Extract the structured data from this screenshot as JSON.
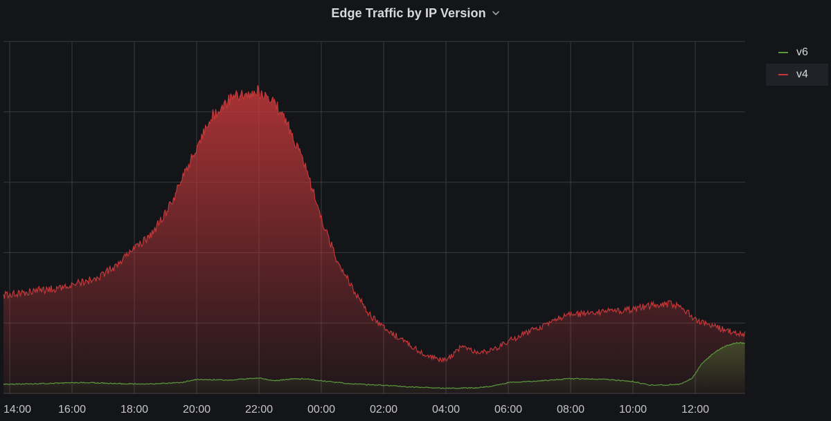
{
  "panel": {
    "title": "Edge Traffic by IP Version",
    "menu_icon": "chevron-down-icon"
  },
  "colors": {
    "background": "#141519",
    "grid": "#3a3b3f",
    "v4": "#c4383a",
    "v6": "#5b9a3c",
    "text": "#d8d9da"
  },
  "legend": {
    "items": [
      {
        "name": "v6",
        "color": "#5b9a3c"
      },
      {
        "name": "v4",
        "color": "#c4383a"
      }
    ],
    "placement": "right"
  },
  "chart_data": {
    "type": "area",
    "title": "Edge Traffic by IP Version",
    "x_unit": "hours",
    "x_range": [
      13.8,
      37.6
    ],
    "y_range": [
      0,
      100
    ],
    "y_tick_labels_visible": false,
    "grid": true,
    "x_tick_labels": [
      "14:00",
      "16:00",
      "18:00",
      "20:00",
      "22:00",
      "00:00",
      "02:00",
      "04:00",
      "06:00",
      "08:00",
      "10:00",
      "12:00"
    ],
    "x_tick_values": [
      14,
      16,
      18,
      20,
      22,
      24,
      26,
      28,
      30,
      32,
      34,
      36
    ],
    "y_gridlines": [
      0,
      20,
      40,
      60,
      80,
      100
    ],
    "series": [
      {
        "name": "v6",
        "fill": true,
        "x": [
          13.8,
          14.5,
          15.5,
          16.5,
          17.5,
          18.5,
          19.5,
          20.0,
          21.0,
          22.0,
          22.5,
          23.0,
          23.5,
          24.0,
          24.5,
          25.0,
          26.0,
          27.0,
          28.0,
          29.0,
          29.5,
          30.0,
          31.0,
          32.0,
          33.0,
          34.0,
          34.5,
          35.0,
          35.5,
          35.9,
          36.2,
          36.6,
          37.0,
          37.3,
          37.6
        ],
        "y": [
          0.8,
          0.9,
          1.1,
          1.3,
          1.0,
          0.9,
          1.3,
          2.2,
          2.0,
          2.6,
          1.8,
          2.3,
          2.4,
          1.8,
          1.3,
          0.9,
          0.5,
          0.0,
          -0.3,
          -0.2,
          0.3,
          1.3,
          1.8,
          2.4,
          2.3,
          1.6,
          0.6,
          0.6,
          0.8,
          2.5,
          6.5,
          9.8,
          11.8,
          12.5,
          12.5
        ]
      },
      {
        "name": "v4",
        "fill": true,
        "x": [
          13.8,
          14.5,
          15.5,
          16.5,
          17.0,
          17.5,
          18.0,
          18.5,
          19.0,
          19.5,
          20.0,
          20.5,
          21.0,
          21.5,
          22.0,
          22.5,
          23.0,
          23.5,
          24.0,
          24.5,
          25.0,
          25.5,
          26.0,
          26.5,
          27.0,
          27.5,
          28.0,
          28.5,
          29.0,
          29.5,
          30.0,
          30.5,
          31.0,
          31.5,
          32.0,
          32.5,
          33.0,
          33.5,
          34.0,
          34.5,
          35.0,
          35.3,
          35.6,
          36.0,
          36.5,
          37.0,
          37.3,
          37.6
        ],
        "y": [
          26,
          27,
          28,
          30,
          32,
          35,
          39,
          43,
          49,
          58,
          68,
          77,
          81,
          83,
          84,
          81,
          73,
          62,
          48,
          36,
          28,
          21,
          17,
          14,
          11,
          8.5,
          7.5,
          11.5,
          9.5,
          10.5,
          13,
          15,
          17,
          19,
          20.5,
          21,
          21.5,
          21.5,
          22,
          23,
          23.5,
          23.5,
          22.5,
          19,
          17.5,
          16,
          15.5,
          15
        ]
      }
    ]
  }
}
